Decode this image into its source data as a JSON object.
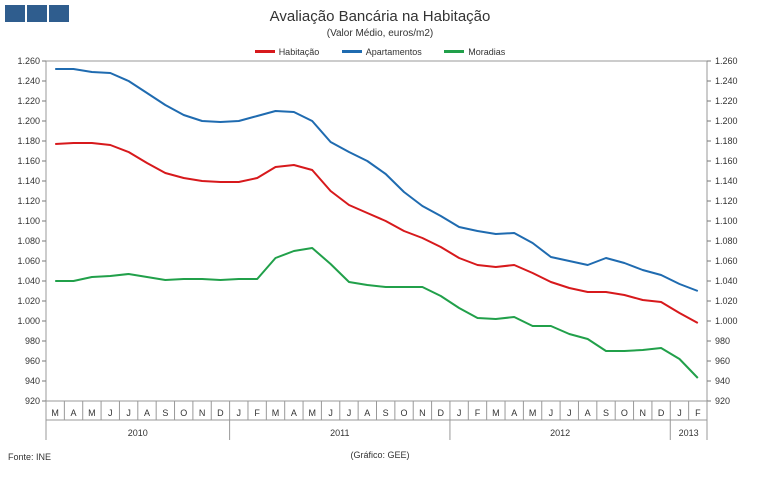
{
  "logo": {
    "color": "#2f5d8e"
  },
  "source": "Fonte: INE",
  "credit": "(Gráfico: GEE)",
  "chart_data": {
    "type": "line",
    "title": "Avaliação Bancária na Habitação",
    "subtitle": "(Valor Médio, euros/m2)",
    "xlabel": "",
    "ylabel": "",
    "ylim": [
      920,
      1260
    ],
    "yticks": [
      920,
      940,
      960,
      980,
      1000,
      1020,
      1040,
      1060,
      1080,
      1100,
      1120,
      1140,
      1160,
      1180,
      1200,
      1220,
      1240,
      1260
    ],
    "ytick_labels": [
      "920",
      "940",
      "960",
      "980",
      "1.000",
      "1.020",
      "1.040",
      "1.060",
      "1.080",
      "1.100",
      "1.120",
      "1.140",
      "1.160",
      "1.180",
      "1.200",
      "1.220",
      "1.240",
      "1.260"
    ],
    "categories": [
      "M",
      "A",
      "M",
      "J",
      "J",
      "A",
      "S",
      "O",
      "N",
      "D",
      "J",
      "F",
      "M",
      "A",
      "M",
      "J",
      "J",
      "A",
      "S",
      "O",
      "N",
      "D",
      "J",
      "F",
      "M",
      "A",
      "M",
      "J",
      "J",
      "A",
      "S",
      "O",
      "N",
      "D",
      "J",
      "F"
    ],
    "years": [
      {
        "label": "2010",
        "count": 10
      },
      {
        "label": "2011",
        "count": 12
      },
      {
        "label": "2012",
        "count": 12
      },
      {
        "label": "2013",
        "count": 2
      }
    ],
    "series": [
      {
        "name": "Habitação",
        "color": "#d7191c",
        "values": [
          1177,
          1178,
          1178,
          1176,
          1169,
          1158,
          1148,
          1143,
          1140,
          1139,
          1139,
          1143,
          1154,
          1156,
          1151,
          1130,
          1116,
          1108,
          1100,
          1090,
          1083,
          1074,
          1063,
          1056,
          1054,
          1056,
          1048,
          1039,
          1033,
          1029,
          1029,
          1026,
          1021,
          1019,
          1008,
          998
        ]
      },
      {
        "name": "Apartamentos",
        "color": "#1f6bb0",
        "values": [
          1252,
          1252,
          1249,
          1248,
          1240,
          1228,
          1216,
          1206,
          1200,
          1199,
          1200,
          1205,
          1210,
          1209,
          1200,
          1179,
          1169,
          1160,
          1147,
          1129,
          1115,
          1105,
          1094,
          1090,
          1087,
          1088,
          1078,
          1064,
          1060,
          1056,
          1063,
          1058,
          1051,
          1046,
          1037,
          1030
        ]
      },
      {
        "name": "Moradias",
        "color": "#21a04a",
        "values": [
          1040,
          1040,
          1044,
          1045,
          1047,
          1044,
          1041,
          1042,
          1042,
          1041,
          1042,
          1042,
          1063,
          1070,
          1073,
          1057,
          1039,
          1036,
          1034,
          1034,
          1034,
          1025,
          1013,
          1003,
          1002,
          1004,
          995,
          995,
          987,
          982,
          970,
          970,
          971,
          973,
          962,
          943
        ]
      }
    ]
  }
}
